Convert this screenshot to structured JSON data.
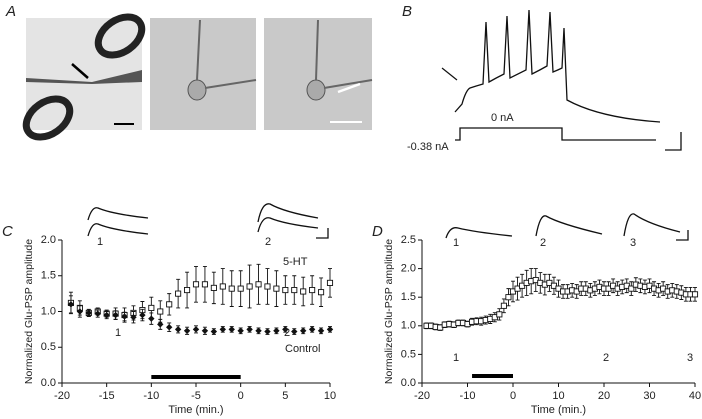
{
  "panels": {
    "A": "A",
    "B": "B",
    "C": "C",
    "D": "D"
  },
  "panel_b": {
    "current_labels": [
      "0 nA",
      "-0.38 nA"
    ]
  },
  "chart_data": [
    {
      "type": "scatter",
      "xlabel": "Time (min.)",
      "ylabel": "Normalized Glu-PSP amplitude",
      "xlim": [
        -20,
        10
      ],
      "xticks": [
        -20,
        -15,
        -10,
        -5,
        0,
        5,
        10
      ],
      "ylim": [
        0,
        2
      ],
      "yticks": [
        {
          "value": 0,
          "label": "0.0"
        },
        0.5,
        {
          "value": 1,
          "label": "1.0"
        },
        1.5,
        {
          "value": 2,
          "label": "2.0"
        }
      ],
      "x": [
        -19,
        -18,
        -17,
        -16,
        -15,
        -14,
        -13,
        -12,
        -11,
        -10,
        -9,
        -8,
        -7,
        -6,
        -5,
        -4,
        -3,
        -2,
        -1,
        0,
        1,
        2,
        3,
        4,
        5,
        6,
        7,
        8,
        9,
        10
      ],
      "series": [
        {
          "name": "5-HT",
          "color": "#111111",
          "marker": "square-open",
          "values": [
            1.12,
            1.05,
            0.98,
            1.0,
            0.97,
            0.97,
            0.95,
            0.98,
            1.02,
            1.05,
            1.0,
            1.1,
            1.25,
            1.3,
            1.38,
            1.38,
            1.33,
            1.35,
            1.32,
            1.32,
            1.35,
            1.38,
            1.35,
            1.32,
            1.3,
            1.3,
            1.28,
            1.3,
            1.27,
            1.4
          ],
          "errors": [
            0.15,
            0.1,
            0.05,
            0.05,
            0.05,
            0.08,
            0.1,
            0.1,
            0.12,
            0.15,
            0.15,
            0.15,
            0.2,
            0.25,
            0.25,
            0.25,
            0.22,
            0.25,
            0.25,
            0.25,
            0.3,
            0.28,
            0.25,
            0.25,
            0.2,
            0.2,
            0.2,
            0.2,
            0.2,
            0.2
          ]
        },
        {
          "name": "Control",
          "color": "#111111",
          "marker": "diamond",
          "values": [
            1.1,
            1.0,
            0.98,
            0.97,
            0.95,
            0.95,
            0.93,
            0.92,
            0.95,
            0.9,
            0.82,
            0.78,
            0.75,
            0.73,
            0.75,
            0.73,
            0.72,
            0.75,
            0.75,
            0.73,
            0.75,
            0.73,
            0.72,
            0.73,
            0.75,
            0.72,
            0.73,
            0.75,
            0.73,
            0.75
          ],
          "errors": [
            0.12,
            0.08,
            0.04,
            0.05,
            0.05,
            0.06,
            0.06,
            0.08,
            0.08,
            0.08,
            0.07,
            0.06,
            0.05,
            0.05,
            0.05,
            0.05,
            0.04,
            0.04,
            0.04,
            0.04,
            0.04,
            0.04,
            0.04,
            0.04,
            0.04,
            0.04,
            0.04,
            0.04,
            0.04,
            0.04
          ]
        }
      ],
      "drug_bar": [
        -10,
        0
      ],
      "annotations": [
        "1",
        "2"
      ],
      "trace_labels": [
        "1",
        "2"
      ]
    },
    {
      "type": "scatter",
      "xlabel": "Time (min.)",
      "ylabel": "Normalized Glu-PSP amplitude",
      "xlim": [
        -20,
        40
      ],
      "xticks": [
        -20,
        -10,
        0,
        10,
        20,
        30,
        40
      ],
      "ylim": [
        0,
        2.5
      ],
      "yticks": [
        {
          "value": 0,
          "label": "0.0"
        },
        0.5,
        {
          "value": 1,
          "label": "1.0"
        },
        1.5,
        {
          "value": 2,
          "label": "2.0"
        },
        2.5
      ],
      "x": [
        -19,
        -18,
        -17,
        -16,
        -15,
        -14,
        -13,
        -12,
        -11,
        -10,
        -9,
        -8,
        -7,
        -6,
        -5,
        -4,
        -3,
        -2,
        -1,
        0,
        1,
        2,
        3,
        4,
        5,
        6,
        7,
        8,
        9,
        10,
        11,
        12,
        13,
        14,
        15,
        16,
        17,
        18,
        19,
        20,
        21,
        22,
        23,
        24,
        25,
        26,
        27,
        28,
        29,
        30,
        31,
        32,
        33,
        34,
        35,
        36,
        37,
        38,
        39,
        40
      ],
      "series": [
        {
          "name": null,
          "color": "#111111",
          "marker": "square-open",
          "values": [
            1.0,
            1.0,
            0.98,
            0.97,
            1.02,
            1.03,
            1.02,
            1.05,
            1.05,
            1.03,
            1.07,
            1.08,
            1.08,
            1.1,
            1.12,
            1.15,
            1.2,
            1.35,
            1.5,
            1.6,
            1.65,
            1.7,
            1.75,
            1.78,
            1.8,
            1.75,
            1.72,
            1.75,
            1.7,
            1.65,
            1.6,
            1.6,
            1.62,
            1.6,
            1.65,
            1.65,
            1.62,
            1.65,
            1.68,
            1.65,
            1.65,
            1.7,
            1.65,
            1.68,
            1.7,
            1.65,
            1.72,
            1.7,
            1.68,
            1.7,
            1.65,
            1.62,
            1.65,
            1.6,
            1.62,
            1.6,
            1.58,
            1.55,
            1.55,
            1.55
          ],
          "errors": [
            0.05,
            0.05,
            0.05,
            0.05,
            0.05,
            0.05,
            0.05,
            0.05,
            0.05,
            0.05,
            0.06,
            0.06,
            0.07,
            0.07,
            0.08,
            0.08,
            0.1,
            0.12,
            0.15,
            0.18,
            0.2,
            0.2,
            0.22,
            0.22,
            0.2,
            0.18,
            0.18,
            0.15,
            0.15,
            0.15,
            0.12,
            0.12,
            0.12,
            0.12,
            0.12,
            0.12,
            0.12,
            0.12,
            0.12,
            0.12,
            0.12,
            0.12,
            0.12,
            0.12,
            0.12,
            0.12,
            0.12,
            0.12,
            0.12,
            0.12,
            0.12,
            0.12,
            0.12,
            0.12,
            0.12,
            0.12,
            0.12,
            0.12,
            0.12,
            0.12
          ]
        }
      ],
      "drug_bar": [
        -9,
        0
      ],
      "annotations": [
        "1",
        "2",
        "3"
      ],
      "trace_labels": [
        "1",
        "2",
        "3"
      ]
    }
  ]
}
